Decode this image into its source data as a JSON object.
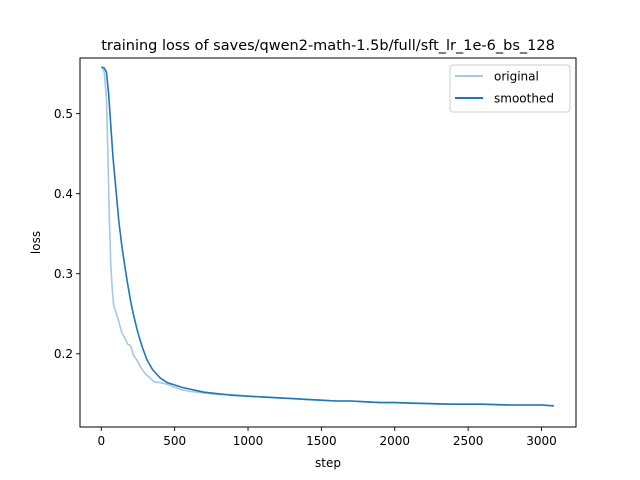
{
  "chart_data": {
    "type": "line",
    "title": "training loss of saves/qwen2-math-1.5b/full/sft_lr_1e-6_bs_128",
    "xlabel": "step",
    "ylabel": "loss",
    "xlim": [
      -145,
      3235
    ],
    "ylim": [
      0.1085,
      0.5695
    ],
    "xticks": [
      0,
      500,
      1000,
      1500,
      2000,
      2500,
      3000
    ],
    "xtick_labels": [
      "0",
      "500",
      "1000",
      "1500",
      "2000",
      "2500",
      "3000"
    ],
    "yticks": [
      0.2,
      0.3,
      0.4,
      0.5
    ],
    "ytick_labels": [
      "0.2",
      "0.3",
      "0.4",
      "0.5"
    ],
    "grid": false,
    "legend_position": "top-right",
    "series": [
      {
        "name": "original",
        "color": "#a6c8e2",
        "x": [
          5,
          20,
          35,
          45,
          55,
          65,
          75,
          85,
          100,
          120,
          140,
          160,
          180,
          200,
          220,
          240,
          260,
          280,
          300,
          330,
          360,
          400,
          450,
          500,
          550,
          600,
          700,
          800,
          900,
          1000,
          1100,
          1200,
          1300,
          1400,
          1500,
          1600,
          1700,
          1800,
          1900,
          2000,
          2100,
          2200,
          2300,
          2400,
          2500,
          2600,
          2700,
          2800,
          2900,
          3000,
          3080
        ],
        "y": [
          0.558,
          0.552,
          0.52,
          0.45,
          0.37,
          0.31,
          0.28,
          0.26,
          0.252,
          0.24,
          0.226,
          0.22,
          0.212,
          0.21,
          0.198,
          0.193,
          0.186,
          0.18,
          0.175,
          0.17,
          0.165,
          0.164,
          0.162,
          0.158,
          0.155,
          0.153,
          0.151,
          0.149,
          0.149,
          0.147,
          0.146,
          0.145,
          0.144,
          0.143,
          0.142,
          0.141,
          0.141,
          0.14,
          0.139,
          0.139,
          0.138,
          0.138,
          0.137,
          0.137,
          0.137,
          0.137,
          0.136,
          0.136,
          0.136,
          0.136,
          0.135
        ]
      },
      {
        "name": "smoothed",
        "color": "#1f77b4",
        "x": [
          5,
          20,
          35,
          50,
          65,
          80,
          100,
          120,
          140,
          160,
          180,
          200,
          220,
          250,
          280,
          310,
          350,
          400,
          450,
          500,
          550,
          600,
          650,
          700,
          800,
          900,
          1000,
          1100,
          1200,
          1300,
          1400,
          1500,
          1600,
          1700,
          1800,
          1900,
          2000,
          2200,
          2400,
          2600,
          2800,
          3000,
          3080
        ],
        "y": [
          0.558,
          0.557,
          0.552,
          0.525,
          0.485,
          0.445,
          0.405,
          0.365,
          0.335,
          0.31,
          0.287,
          0.266,
          0.248,
          0.226,
          0.208,
          0.193,
          0.18,
          0.17,
          0.164,
          0.161,
          0.158,
          0.156,
          0.154,
          0.152,
          0.15,
          0.148,
          0.147,
          0.146,
          0.145,
          0.144,
          0.143,
          0.142,
          0.141,
          0.141,
          0.14,
          0.139,
          0.139,
          0.138,
          0.137,
          0.137,
          0.136,
          0.136,
          0.135
        ]
      }
    ]
  }
}
